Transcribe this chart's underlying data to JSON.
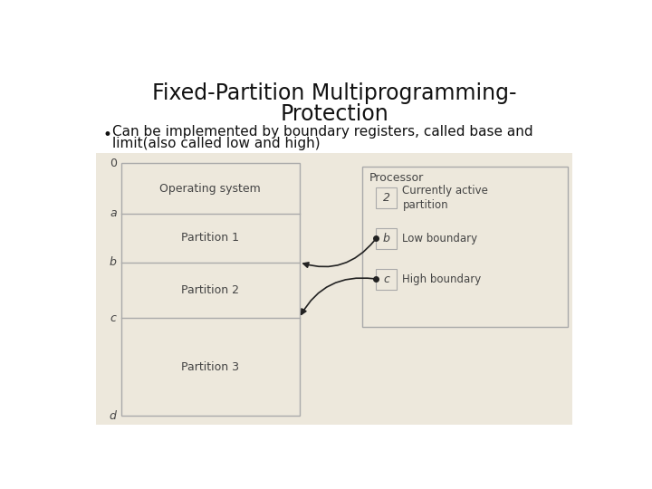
{
  "title_line1": "Fixed-Partition Multiprogramming-",
  "title_line2": "Protection",
  "bullet_text1": "Can be implemented by boundary registers, called base and",
  "bullet_text2": "limit(also called low and high)",
  "bg_color": "#ffffff",
  "diagram_bg": "#ede8dc",
  "border_color": "#aaaaaa",
  "text_color": "#222222",
  "title_fontsize": 17,
  "bullet_fontsize": 11,
  "diagram_fontsize": 9,
  "mem_labels": [
    "0",
    "a",
    "b",
    "c",
    "d"
  ],
  "partition_texts": [
    "Operating system",
    "Partition 1",
    "Partition 2",
    "Partition 3"
  ],
  "processor_label": "Processor",
  "reg_vals": [
    "2",
    "b",
    "c"
  ],
  "reg_descs": [
    "Currently active\npartition",
    "Low boundary",
    "High boundary"
  ]
}
